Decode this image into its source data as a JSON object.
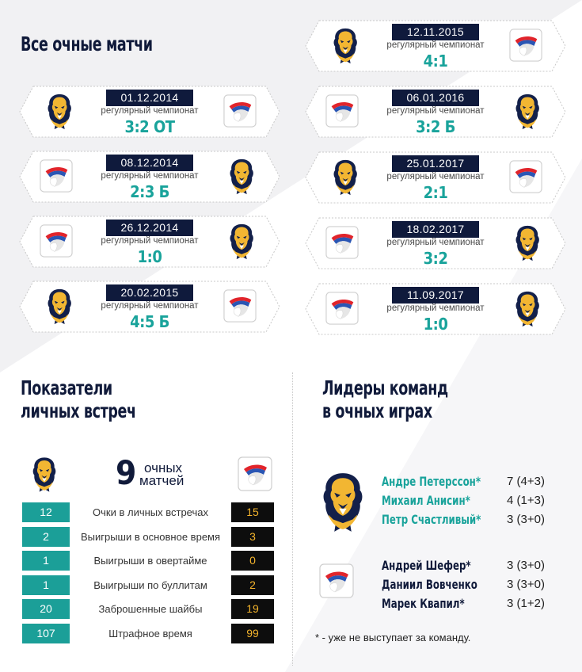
{
  "headings": {
    "all_matches": "Все очные матчи",
    "stats_line1": "Показатели",
    "stats_line2": "личных встреч",
    "leaders_line1": "Лидеры команд",
    "leaders_line2": "в очных играх"
  },
  "teams": {
    "home_logo_icon": "panther-logo-icon",
    "away_logo_icon": "white-red-blue-emblem-icon",
    "teal": "#19a39b",
    "navy": "#101a3a",
    "gold": "#f3b32c"
  },
  "matches_left": [
    {
      "date": "01.12.2014",
      "stage": "регулярный чемпионат",
      "score": "3:2 ОТ",
      "left": "panther",
      "right": "emblem"
    },
    {
      "date": "08.12.2014",
      "stage": "регулярный чемпионат",
      "score": "2:3 Б",
      "left": "emblem",
      "right": "panther"
    },
    {
      "date": "26.12.2014",
      "stage": "регулярный чемпионат",
      "score": "1:0",
      "left": "emblem",
      "right": "panther"
    },
    {
      "date": "20.02.2015",
      "stage": "регулярный чемпионат",
      "score": "4:5 Б",
      "left": "panther",
      "right": "emblem"
    }
  ],
  "matches_right": [
    {
      "date": "12.11.2015",
      "stage": "регулярный чемпионат",
      "score": "4:1",
      "left": "panther",
      "right": "emblem"
    },
    {
      "date": "06.01.2016",
      "stage": "регулярный чемпионат",
      "score": "3:2 Б",
      "left": "emblem",
      "right": "panther"
    },
    {
      "date": "25.01.2017",
      "stage": "регулярный чемпионат",
      "score": "2:1",
      "left": "panther",
      "right": "emblem"
    },
    {
      "date": "18.02.2017",
      "stage": "регулярный чемпионат",
      "score": "3:2",
      "left": "emblem",
      "right": "panther"
    },
    {
      "date": "11.09.2017",
      "stage": "регулярный чемпионат",
      "score": "1:0",
      "left": "emblem",
      "right": "panther"
    }
  ],
  "summary": {
    "count": "9",
    "count_line1": "очных",
    "count_line2": "матчей"
  },
  "stats": [
    {
      "left": "12",
      "label": "Очки в личных встречах",
      "right": "15"
    },
    {
      "left": "2",
      "label": "Выигрыши в основное время",
      "right": "3"
    },
    {
      "left": "1",
      "label": "Выигрыши в овертайме",
      "right": "0"
    },
    {
      "left": "1",
      "label": "Выигрыши по буллитам",
      "right": "2"
    },
    {
      "left": "20",
      "label": "Заброшенные шайбы",
      "right": "19"
    },
    {
      "left": "107",
      "label": "Штрафное время",
      "right": "99"
    }
  ],
  "leaders_panther": [
    {
      "name": "Андре Петерссон*",
      "points": "7 (4+3)"
    },
    {
      "name": "Михаил Анисин*",
      "points": "4 (1+3)"
    },
    {
      "name": "Петр Счастливый*",
      "points": "3 (3+0)"
    }
  ],
  "leaders_emblem": [
    {
      "name": "Андрей Шефер*",
      "points": "3 (3+0)"
    },
    {
      "name": "Даниил Вовченко",
      "points": "3 (3+0)"
    },
    {
      "name": "Марек Квапил*",
      "points": "3 (1+2)"
    }
  ],
  "footnote": "* - уже не выступает за команду."
}
